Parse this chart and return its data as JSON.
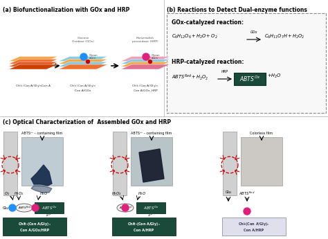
{
  "title_a": "(a) Biofunctionalization with GOx and HRP",
  "title_b": "(b) Reactions to Detect Dual-enzyme functions",
  "title_c": "(c) Optical Characterization of  Assembled GOx and HRP",
  "gox_reaction_title": "GOx-catalyzed reaction:",
  "hrp_reaction_title": "HRP-catalyzed reaction:",
  "bg_color": "#ffffff",
  "abts_ox_color": "#1a4a3a",
  "ball_blue": "#1e90ff",
  "ball_pink": "#e0207e",
  "red_dashed": "#cc0000",
  "label1": "Chit-(Con A/Gly)$_n$Con A",
  "label2": "Chit-(Con A/Gly)$_n$\nCon A/GOx",
  "label3": "Chit-(Con A/Gly)$_n$\nCon A/GOx_HRP",
  "enzyme1": "Glucose\nOxidase (GOx)",
  "enzyme2": "Horseradish\nperoxidase (HRP)",
  "c_label1": "ABTSᵒˣ – containing film",
  "c_label2": "ABTSᵒˣ – containing film",
  "c_label3": "Colorless film",
  "c_sub1a": "Chit-(Con A/Gly)$_n$",
  "c_sub1b": "Con A/GOx/HRP",
  "c_sub2a": "Chit-(Con A/Gly)$_n$",
  "c_sub2b": "Con A/HRP",
  "c_sub3a": "Chi-(Con A/Gly)$_n$",
  "c_sub3b": "Con A/HRP"
}
